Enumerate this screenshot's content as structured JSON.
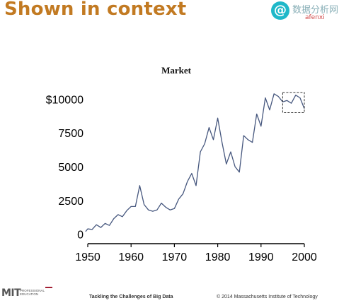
{
  "slide": {
    "title": "Shown in context"
  },
  "watermark": {
    "icon": "at-sign-icon",
    "text": "数据分析网",
    "sub": "afenxi"
  },
  "chart_data": {
    "type": "line",
    "title": "Market",
    "xlabel": "",
    "ylabel": "",
    "xlim": [
      1950,
      2000
    ],
    "ylim": [
      -700,
      11800
    ],
    "x_ticks": [
      1950,
      1960,
      1970,
      1980,
      1990,
      2000
    ],
    "y_ticks": [
      0,
      2500,
      5000,
      7500,
      10000
    ],
    "y_tick_labels": [
      "0",
      "2500",
      "5000",
      "7500",
      "$10000"
    ],
    "grid": false,
    "line_color": "#46577e",
    "series": [
      {
        "x": [
          1949.5,
          1950,
          1951,
          1952,
          1953,
          1954,
          1955,
          1956,
          1957,
          1958,
          1959,
          1960,
          1961,
          1962,
          1963,
          1964,
          1965,
          1966,
          1967,
          1968,
          1969,
          1970,
          1971,
          1972,
          1973,
          1974,
          1975,
          1976,
          1977,
          1978,
          1979,
          1980,
          1981,
          1982,
          1983,
          1984,
          1985,
          1986,
          1987,
          1988,
          1989,
          1990,
          1991,
          1992,
          1993,
          1994,
          1995,
          1996,
          1997,
          1998,
          1999,
          2000
        ],
        "y": [
          200,
          400,
          350,
          700,
          500,
          800,
          650,
          1150,
          1450,
          1300,
          1750,
          2050,
          2050,
          3600,
          2200,
          1800,
          1700,
          1800,
          2300,
          2000,
          1800,
          1900,
          2600,
          3000,
          3900,
          4500,
          3600,
          6100,
          6700,
          7900,
          7000,
          8600,
          6800,
          5200,
          6100,
          5000,
          4600,
          7300,
          7000,
          6800,
          8900,
          8000,
          10100,
          9200,
          10400,
          10200,
          9800,
          9900,
          9700,
          10300,
          10100,
          9300
        ]
      }
    ],
    "highlight_box": {
      "x": [
        1995,
        2000
      ],
      "y": [
        9000,
        10500
      ],
      "style": "dashed"
    }
  },
  "footer": {
    "logo": "MIT",
    "logo_sub": "Professional Education",
    "center": "Tackling the Challenges of Big Data",
    "right": "© 2014 Massachusetts Institute of Technology"
  }
}
